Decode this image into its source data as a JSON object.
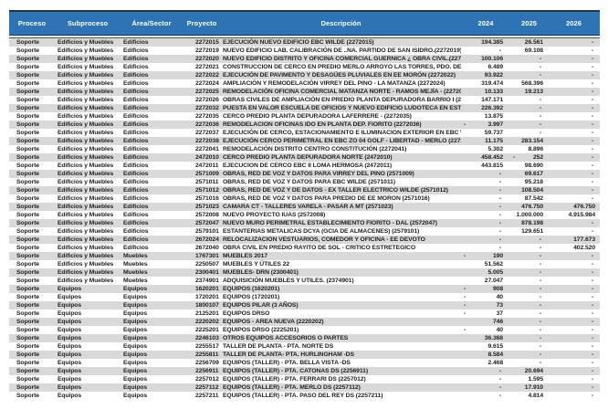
{
  "table": {
    "colors": {
      "header_bg": "#2E74B5",
      "header_text": "#FFFFFF",
      "row_stripe": "#D9D9D9",
      "row_base": "#FFFFFF",
      "body_text": "#1F1F1F",
      "border_dark": "#17365D"
    },
    "columns": [
      {
        "key": "proceso",
        "label": "Proceso"
      },
      {
        "key": "subproceso",
        "label": "Subproceso"
      },
      {
        "key": "area",
        "label": "Área/Sector"
      },
      {
        "key": "proyecto",
        "label": "Proyecto"
      },
      {
        "key": "descripcion",
        "label": "Descripción"
      },
      {
        "key": "y2024",
        "label": "2024"
      },
      {
        "key": "y2025",
        "label": "2025"
      },
      {
        "key": "y2026",
        "label": "2026"
      }
    ],
    "rows": [
      {
        "proceso": "Soporte",
        "subproceso": "Edificios y Muebles",
        "area": "Edificios",
        "proyecto": "2272015",
        "descripcion": "EJECUCIÓN NUEVO EDIFICIO EBC WILDE (2272015)",
        "y2024": "194.385",
        "y2025": "26.561",
        "y2026": "-"
      },
      {
        "proceso": "Soporte",
        "subproceso": "Edificios y Muebles",
        "area": "Edificios",
        "proyecto": "2272019",
        "descripcion": "NUEVO EDIFICIO LAB. CALIBRACIÓN DE ..NA. PARTIDO DE SAN ISIDRO.(2272019)",
        "y2024": "-",
        "y2025": "69.108",
        "y2026": "-"
      },
      {
        "proceso": "Soporte",
        "subproceso": "Edificios y Muebles",
        "area": "Edificios",
        "proyecto": "2272020",
        "descripcion": "NUEVO EDIFICIO DISTRITO Y OFICINA COMERCIAL GUERNICA ¿ OBRA CIVIL.(2272020)",
        "y2024": "100.106",
        "y2025": "-",
        "y2026": "-"
      },
      {
        "proceso": "Soporte",
        "subproceso": "Edificios y Muebles",
        "area": "Edificios",
        "proyecto": "2272021",
        "descripcion": "CONSTRUCCION DE CERCO EN PREDIO MERLO ARROYO LAS TORRES, PDO. DE MERLO (2272021)",
        "y2024": "6.489",
        "y2025": "-",
        "y2026": "-"
      },
      {
        "proceso": "Soporte",
        "subproceso": "Edificios y Muebles",
        "area": "Edificios",
        "proyecto": "2272022",
        "descripcion": "EJECUCIÓN DE PAVIMENTO Y DESAGÜES PLUVIALES EN EE MORÓN (2272022)",
        "y2024": "93.922",
        "y2025": "-",
        "y2026": "-"
      },
      {
        "proceso": "Soporte",
        "subproceso": "Edificios y Muebles",
        "area": "Edificios",
        "proyecto": "2272024",
        "descripcion": "AMPLIACIÓN Y REMODELACIÓN VIRREY DEL PINO - LA MATANZA (2272024)",
        "y2024": "319.474",
        "y2025": "568.396",
        "y2026": "-"
      },
      {
        "proceso": "Soporte",
        "subproceso": "Edificios y Muebles",
        "area": "Edificios",
        "proyecto": "2272025",
        "descripcion": "REMODELACIÓN OFICINA COMERCIAL MATANZA NORTE - RAMOS MEJÍA - (2272025)",
        "y2024": "10.133",
        "y2025": "19.213",
        "y2026": "-"
      },
      {
        "proceso": "Soporte",
        "subproceso": "Edificios y Muebles",
        "area": "Edificios",
        "proyecto": "2272026",
        "descripcion": "OBRAS CIVILES DE AMPLIACIÓN EN PREDIO PLANTA DEPURADORA BARRIO I (2272026)",
        "y2024": "147.171",
        "y2025": "-",
        "y2026": "-"
      },
      {
        "proceso": "Soporte",
        "subproceso": "Edificios y Muebles",
        "area": "Edificios",
        "proyecto": "2272032",
        "descripcion": "PUESTA EN VALOR ESCUELA DE OFICIOS Y NUEVO EDIFICIO LUDOTECA EN ESTABLECIMIENTO",
        "y2024": "226.392",
        "y2025": "-",
        "y2026": "-"
      },
      {
        "proceso": "Soporte",
        "subproceso": "Edificios y Muebles",
        "area": "Edificios",
        "proyecto": "2272035",
        "descripcion": "CERCO PREDIO PLANTA DEPURADORA LAFERRERE - (2272035)",
        "y2024": "13.875",
        "y2025": "-",
        "y2026": "-"
      },
      {
        "proceso": "Soporte",
        "subproceso": "Edificios y Muebles",
        "area": "Edificios",
        "proyecto": "2272036",
        "descripcion": "REMODELACION OFICINAS IDO EN PLANTA DEP. FIORITO (2272036)",
        "y2024": "-3.997",
        "y2025": "-",
        "y2026": "-"
      },
      {
        "proceso": "Soporte",
        "subproceso": "Edificios y Muebles",
        "area": "Edificios",
        "proyecto": "2272037",
        "descripcion": "EJECUCIÓN DE CERCO, ESTACIONAMIENTO E ILUMINACION EXTERIOR EN EBC WILDE (2272037)",
        "y2024": "59.737",
        "y2025": "-",
        "y2026": "-"
      },
      {
        "proceso": "Soporte",
        "subproceso": "Edificios y Muebles",
        "area": "Edificios",
        "proyecto": "2272038",
        "descripcion": "EJECUCIÓN CERCO PERIMETRAL EN EBC ZO 04 GOLF - LIBERTAD - MERLO (2272038)",
        "y2024": "11.175",
        "y2025": "283.154",
        "y2026": "-"
      },
      {
        "proceso": "Soporte",
        "subproceso": "Edificios y Muebles",
        "area": "Edificios",
        "proyecto": "2272041",
        "descripcion": "REMODELACIÓN DISTRITO CENTRO CONSTITUCIÓN (2272041)",
        "y2024": "5.302",
        "y2025": "8.896",
        "y2026": "-"
      },
      {
        "proceso": "Soporte",
        "subproceso": "Edificios y Muebles",
        "area": "Edificios",
        "proyecto": "2472010",
        "descripcion": "CERCO PREDIO PLANTA DEPURADORA NORTE (2472010)",
        "y2024": "458.452",
        "y2025": "-252",
        "y2026": "-"
      },
      {
        "proceso": "Soporte",
        "subproceso": "Edificios y Muebles",
        "area": "Edificios",
        "proyecto": "2472011",
        "descripcion": "EJECUCION DE CERCO EBC II LOMA HERMOSA (2472011)",
        "y2024": "443.815",
        "y2025": "98.690",
        "y2026": "-"
      },
      {
        "proceso": "Soporte",
        "subproceso": "Edificios y Muebles",
        "area": "Edificios",
        "proyecto": "2571009",
        "descripcion": "OBRAS, RED DE VOZ Y DATOS PARA VIRREY DEL PINO (2571009)",
        "y2024": "-",
        "y2025": "69.617",
        "y2026": "-"
      },
      {
        "proceso": "Soporte",
        "subproceso": "Edificios y Muebles",
        "area": "Edificios",
        "proyecto": "2571011",
        "descripcion": "OBRAS, RED DE VOZ Y DATOS PARA EBC WILDE (2571011)",
        "y2024": "-",
        "y2025": "95.218",
        "y2026": "-"
      },
      {
        "proceso": "Soporte",
        "subproceso": "Edificios y Muebles",
        "area": "Edificios",
        "proyecto": "2571012",
        "descripcion": "OBRAS, RED DE VOZ Y DE DATOS - EX TALLER ELECTRICO WILDE (2571012)",
        "y2024": "-",
        "y2025": "108.504",
        "y2026": "-"
      },
      {
        "proceso": "Soporte",
        "subproceso": "Edificios y Muebles",
        "area": "Edificios",
        "proyecto": "2571016",
        "descripcion": "OBRAS, RED DE VOZ Y DATOS PARA PREDIO DE  EE MORON (2571016)",
        "y2024": "-",
        "y2025": "87.542",
        "y2026": "-"
      },
      {
        "proceso": "Soporte",
        "subproceso": "Edificios y Muebles",
        "area": "Edificios",
        "proyecto": "2571023",
        "descripcion": "CAMARA CT - TALLERES VARELA - PASAR A MT (2571023)",
        "y2024": "-",
        "y2025": "476.750",
        "y2026": "476.750"
      },
      {
        "proceso": "Soporte",
        "subproceso": "Edificios y Muebles",
        "area": "Edificios",
        "proyecto": "2572008",
        "descripcion": "NUEVO PROYECTO IUAS (2572008)",
        "y2024": "-",
        "y2025": "1.000.000",
        "y2026": "4.915.984"
      },
      {
        "proceso": "Soporte",
        "subproceso": "Edificios y Muebles",
        "area": "Edificios",
        "proyecto": "2572047",
        "descripcion": "NUEVO MURO PERIMETRAL ESTABLECIMIENTO FIORITO - DAL (2572047)",
        "y2024": "-",
        "y2025": "878.198",
        "y2026": "-"
      },
      {
        "proceso": "Soporte",
        "subproceso": "Edificios y Muebles",
        "area": "Edificios",
        "proyecto": "2579101",
        "descripcion": "ESTANTERIAS METALICAS DCYA (GCIA DE ALMACENES) (2579101)",
        "y2024": "-",
        "y2025": "129.651",
        "y2026": "-"
      },
      {
        "proceso": "Soporte",
        "subproceso": "Edificios y Muebles",
        "area": "Edificios",
        "proyecto": "2672024",
        "descripcion": "RELOCALIZACION VESTUARIOS, COMEDOR Y OFICINA - EE DEVOTO",
        "y2024": "-",
        "y2025": "-",
        "y2026": "177.673"
      },
      {
        "proceso": "Soporte",
        "subproceso": "Edificios y Muebles",
        "area": "Edificios",
        "proyecto": "2672040",
        "descripcion": "OBRA CIVIL EN PREDIO RAYITO DE SOL - CRITICO ESTRETEGICO",
        "y2024": "-",
        "y2025": "-",
        "y2026": "402.520"
      },
      {
        "proceso": "Soporte",
        "subproceso": "Edificios y Muebles",
        "area": "Muebles",
        "proyecto": "1767301",
        "descripcion": "MUEBLES 2017",
        "y2024": "-190",
        "y2025": "-",
        "y2026": "-"
      },
      {
        "proceso": "Soporte",
        "subproceso": "Edificios y Muebles",
        "area": "Muebles",
        "proyecto": "2250507",
        "descripcion": "MUEBLES Y ÚTILES 22",
        "y2024": "51.562",
        "y2025": "-",
        "y2026": "-"
      },
      {
        "proceso": "Soporte",
        "subproceso": "Edificios y Muebles",
        "area": "Muebles",
        "proyecto": "2300401",
        "descripcion": "MUEBLES- DRN (2300401)",
        "y2024": "5.005",
        "y2025": "-",
        "y2026": "-"
      },
      {
        "proceso": "Soporte",
        "subproceso": "Edificios y Muebles",
        "area": "Muebles",
        "proyecto": "2374901",
        "descripcion": "ADQUISICIÓN MUEBLES Y UTILES. (2374901)",
        "y2024": "27.047",
        "y2025": "-",
        "y2026": "-"
      },
      {
        "proceso": "Soporte",
        "subproceso": "Equipos",
        "area": "Equipos",
        "proyecto": "1620201",
        "descripcion": "EQUIPOS (1620201)",
        "y2024": "-908",
        "y2025": "-",
        "y2026": "-"
      },
      {
        "proceso": "Soporte",
        "subproceso": "Equipos",
        "area": "Equipos",
        "proyecto": "1720201",
        "descripcion": "EQUIPOS (1720201)",
        "y2024": "-40",
        "y2025": "-",
        "y2026": "-"
      },
      {
        "proceso": "Soporte",
        "subproceso": "Equipos",
        "area": "Equipos",
        "proyecto": "1800107",
        "descripcion": "EQUIPOS PILAR (3 AÑOS)",
        "y2024": "-73",
        "y2025": "-",
        "y2026": "-"
      },
      {
        "proceso": "Soporte",
        "subproceso": "Equipos",
        "area": "Equipos",
        "proyecto": "2125201",
        "descripcion": "EQUIPOS DRSO",
        "y2024": "-37",
        "y2025": "-",
        "y2026": "-"
      },
      {
        "proceso": "Soporte",
        "subproceso": "Equipos",
        "area": "Equipos",
        "proyecto": "2220202",
        "descripcion": "EQUIPOS - AREA NUEVA (2220202)",
        "y2024": "746",
        "y2025": "-",
        "y2026": "-"
      },
      {
        "proceso": "Soporte",
        "subproceso": "Equipos",
        "area": "Equipos",
        "proyecto": "2225201",
        "descripcion": "EQUIPOS DRSO (2225201)",
        "y2024": "-40",
        "y2025": "-",
        "y2026": "-"
      },
      {
        "proceso": "Soporte",
        "subproceso": "Equipos",
        "area": "Equipos",
        "proyecto": "2246103",
        "descripcion": "OTROS EQUIPOS ACCESORIOS O PARTES",
        "y2024": "36.368",
        "y2025": "-",
        "y2026": "-"
      },
      {
        "proceso": "Soporte",
        "subproceso": "Equipos",
        "area": "Equipos",
        "proyecto": "2255517",
        "descripcion": "TALLER DE PLANTA - PTA. NORTE DS",
        "y2024": "9.615",
        "y2025": "-",
        "y2026": "-"
      },
      {
        "proceso": "Soporte",
        "subproceso": "Equipos",
        "area": "Equipos",
        "proyecto": "2255811",
        "descripcion": "TALLER DE PLANTA- PTA. HURLINGHAM -DS",
        "y2024": "8.584",
        "y2025": "-",
        "y2026": "-"
      },
      {
        "proceso": "Soporte",
        "subproceso": "Equipos",
        "area": "Equipos",
        "proyecto": "2256709",
        "descripcion": "EQUIPOS (TALLER) - PTA. BELLA VISTA -DS",
        "y2024": "2.468",
        "y2025": "-",
        "y2026": "-"
      },
      {
        "proceso": "Soporte",
        "subproceso": "Equipos",
        "area": "Equipos",
        "proyecto": "2256911",
        "descripcion": "EQUIPOS (TALLER) - PTA. CATONAS DS (2256911)",
        "y2024": "-",
        "y2025": "20.694",
        "y2026": "-"
      },
      {
        "proceso": "Soporte",
        "subproceso": "Equipos",
        "area": "Equipos",
        "proyecto": "2257012",
        "descripcion": "EQUIPOS (TALLER) - PTA. FERRARI DS (2257012)",
        "y2024": "-",
        "y2025": "1.595",
        "y2026": "-"
      },
      {
        "proceso": "Soporte",
        "subproceso": "Equipos",
        "area": "Equipos",
        "proyecto": "2257112",
        "descripcion": "EQUIPOS (TALLER) - PTA. MERLO DS (2257112)",
        "y2024": "-",
        "y2025": "17.910",
        "y2026": "-"
      },
      {
        "proceso": "Soporte",
        "subproceso": "Equipos",
        "area": "Equipos",
        "proyecto": "2257211",
        "descripcion": "EQUIPOS (TALLER) - PTA. PASO DEL REY DS (2257211)",
        "y2024": "-",
        "y2025": "4.814",
        "y2026": "-"
      }
    ]
  }
}
